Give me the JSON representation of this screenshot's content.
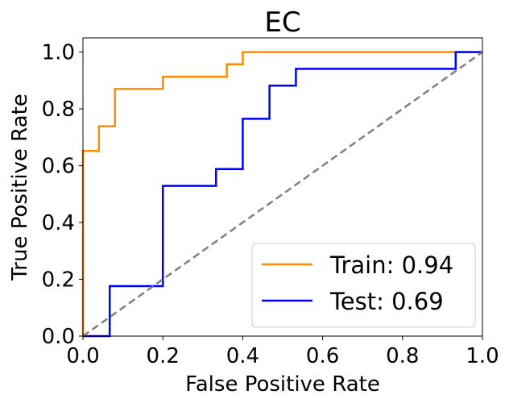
{
  "chart_data": {
    "type": "line",
    "title": "EC",
    "xlabel": "False Positive Rate",
    "ylabel": "True Positive Rate",
    "xlim": [
      0.0,
      1.0
    ],
    "ylim": [
      0.0,
      1.05
    ],
    "x_ticks": [
      0.0,
      0.2,
      0.4,
      0.6,
      0.8,
      1.0
    ],
    "y_ticks": [
      0.0,
      0.2,
      0.4,
      0.6,
      0.8,
      1.0
    ],
    "x_tick_labels": [
      "0.0",
      "0.2",
      "0.4",
      "0.6",
      "0.8",
      "1.0"
    ],
    "y_tick_labels": [
      "0.0",
      "0.2",
      "0.4",
      "0.6",
      "0.8",
      "1.0"
    ],
    "grid": false,
    "legend_position": "lower-right",
    "series": [
      {
        "name": "Train: 0.94",
        "color": "#ff8c00",
        "step": true,
        "x": [
          0.0,
          0.0,
          0.04,
          0.04,
          0.08,
          0.08,
          0.2,
          0.2,
          0.36,
          0.36,
          0.4,
          0.4,
          1.0
        ],
        "y": [
          0.0,
          0.652,
          0.652,
          0.739,
          0.739,
          0.87,
          0.87,
          0.913,
          0.913,
          0.957,
          0.957,
          1.0,
          1.0
        ]
      },
      {
        "name": "Test: 0.69",
        "color": "#0000ff",
        "step": true,
        "x": [
          0.0,
          0.067,
          0.067,
          0.2,
          0.2,
          0.333,
          0.333,
          0.4,
          0.4,
          0.467,
          0.467,
          0.533,
          0.533,
          0.933,
          0.933,
          1.0
        ],
        "y": [
          0.0,
          0.0,
          0.176,
          0.176,
          0.529,
          0.529,
          0.588,
          0.588,
          0.765,
          0.765,
          0.882,
          0.882,
          0.941,
          0.941,
          1.0,
          1.0
        ]
      },
      {
        "role": "chance diagonal",
        "color": "#808080",
        "dashed": true,
        "x": [
          0.0,
          1.0
        ],
        "y": [
          0.0,
          1.0
        ]
      }
    ]
  }
}
